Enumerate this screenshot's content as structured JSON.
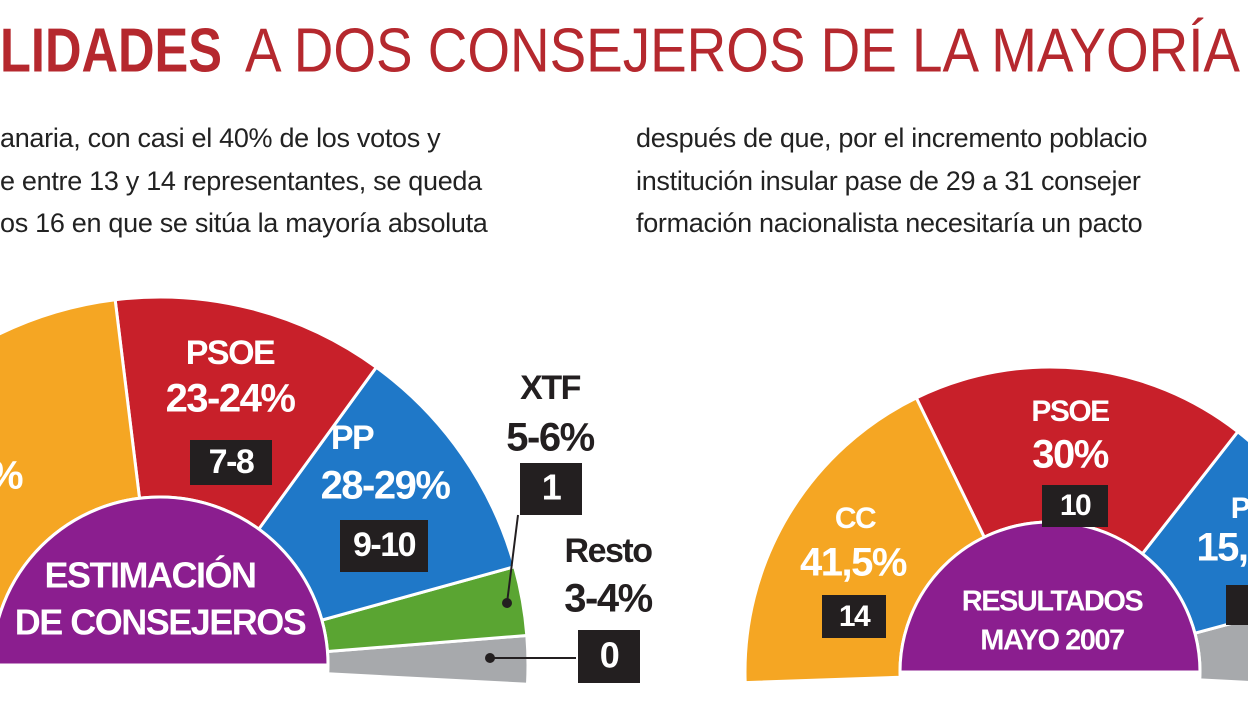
{
  "header": {
    "title_bold": "LIDADES",
    "title": "A DOS CONSEJEROS DE LA MAYORÍA"
  },
  "intro": {
    "left": [
      "anaria, con casi el 40% de los votos y",
      "e entre 13 y 14 representantes, se queda",
      "os 16 en que se sitúa la mayoría absoluta"
    ],
    "right": [
      "después de que, por el incremento poblacio",
      "institución insular pase de 29 a 31 consejer",
      "formación nacionalista necesitaría un pacto"
    ]
  },
  "estimate": {
    "center": [
      "ESTIMACIÓN",
      "DE CONSEJEROS"
    ],
    "parties": [
      {
        "pct": "%"
      },
      {
        "name": "PSOE",
        "pct": "23-24%",
        "seats": "7-8"
      },
      {
        "name": "PP",
        "pct": "28-29%",
        "seats": "9-10"
      },
      {
        "name": "XTF",
        "pct": "5-6%",
        "seats": "1"
      },
      {
        "name": "Resto",
        "pct": "3-4%",
        "seats": "0"
      }
    ]
  },
  "results": {
    "center": [
      "RESULTADOS",
      "MAYO 2007"
    ],
    "parties": [
      {
        "name": "CC",
        "pct": "41,5%",
        "seats": "14"
      },
      {
        "name": "PSOE",
        "pct": "30%",
        "seats": "10"
      },
      {
        "name": "P",
        "pct": "15,"
      }
    ]
  }
}
